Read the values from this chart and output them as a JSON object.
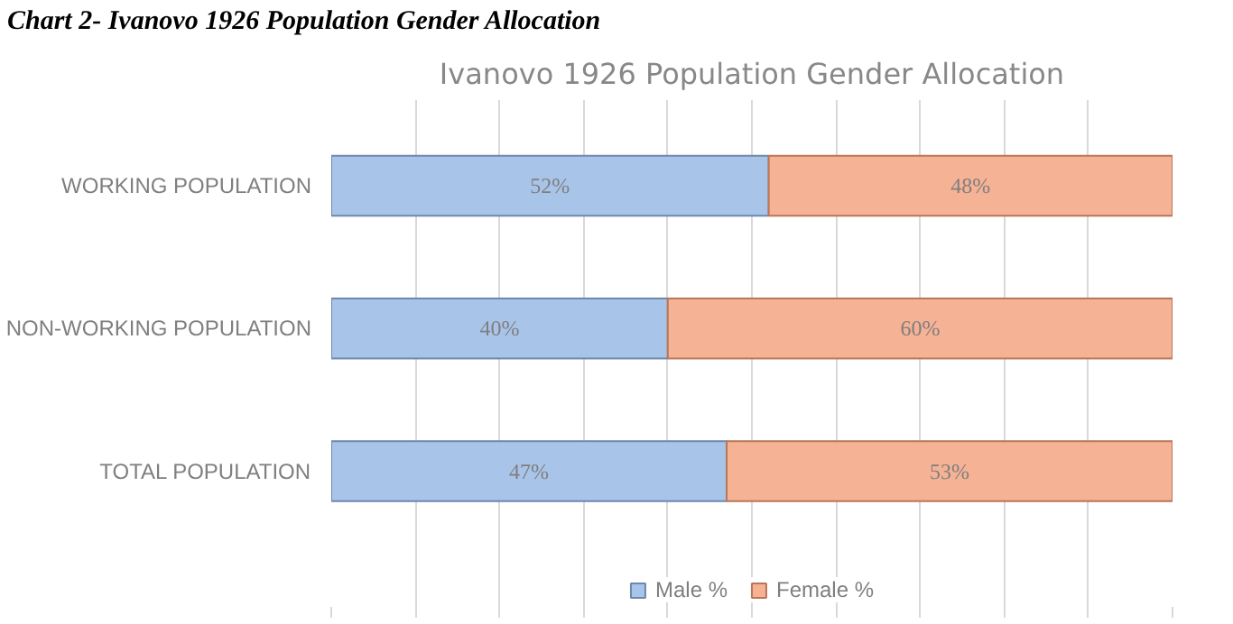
{
  "chart_data": {
    "type": "bar",
    "orientation": "horizontal",
    "stacked": true,
    "title": "Ivanovo 1926 Population Gender Allocation",
    "annotations": [
      "Chart 2- Ivanovo 1926 Population Gender Allocation"
    ],
    "categories": [
      "WORKING POPULATION",
      "NON-WORKING POPULATION",
      "TOTAL POPULATION"
    ],
    "series": [
      {
        "name": "Male %",
        "color": "#a9c4e9",
        "values": [
          52,
          40,
          47
        ],
        "value_labels": [
          "52%",
          "40%",
          "47%"
        ]
      },
      {
        "name": "Female %",
        "color": "#f6b294",
        "values": [
          48,
          60,
          53
        ],
        "value_labels": [
          "48%",
          "60%",
          "53%"
        ]
      }
    ],
    "xlim": [
      0,
      100
    ],
    "xticks": [
      {
        "value": 0,
        "label": null
      },
      {
        "value": 10,
        "label": null
      },
      {
        "value": 20,
        "label": null
      },
      {
        "value": 30,
        "label": null
      },
      {
        "value": 40,
        "label": null
      },
      {
        "value": 50,
        "label": null
      },
      {
        "value": 60,
        "label": null
      },
      {
        "value": 70,
        "label": null
      },
      {
        "value": 80,
        "label": null
      },
      {
        "value": 90,
        "label": null
      },
      {
        "value": 100,
        "label": null
      }
    ],
    "grid": "x",
    "legend": "bottom",
    "tick_labels": "y"
  }
}
